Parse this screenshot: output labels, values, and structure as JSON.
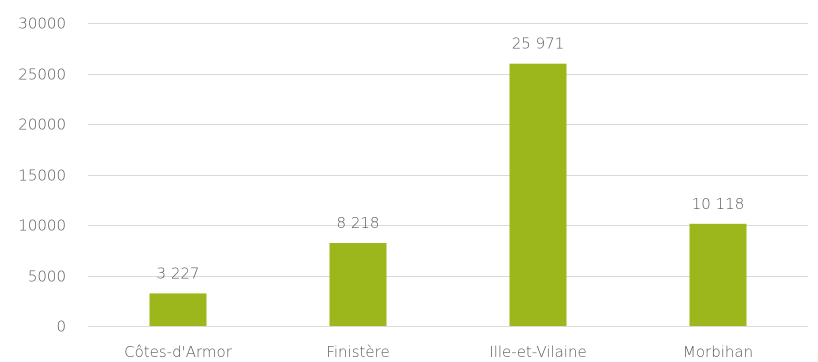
{
  "chart_data": {
    "type": "bar",
    "categories": [
      "Côtes-d'Armor",
      "Finistère",
      "Ille-et-Vilaine",
      "Morbihan"
    ],
    "values": [
      3227,
      8218,
      25971,
      10118
    ],
    "data_labels": [
      "3 227",
      "8 218",
      "25 971",
      "10 118"
    ],
    "ylim": [
      0,
      30000
    ],
    "yticks": [
      0,
      5000,
      10000,
      15000,
      20000,
      25000,
      30000
    ],
    "ytick_labels": [
      "0",
      "5000",
      "10000",
      "15000",
      "20000",
      "25000",
      "30000"
    ],
    "grid": true,
    "legend": "none",
    "bar_color": "#9cb71b",
    "grid_color": "#d9d9d9",
    "text_color": "#595959"
  }
}
